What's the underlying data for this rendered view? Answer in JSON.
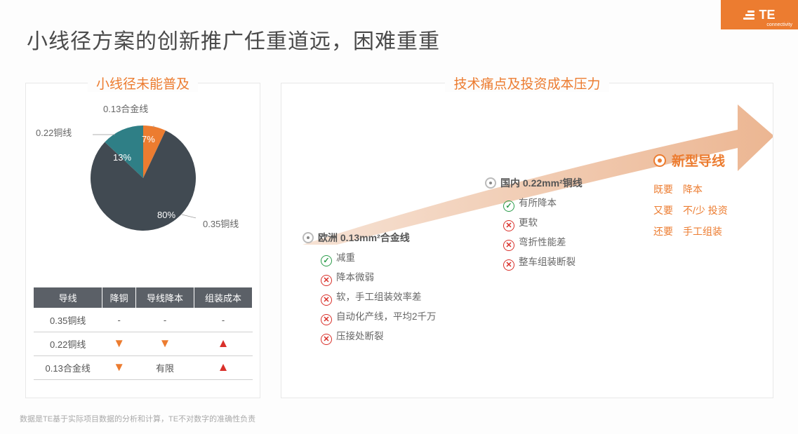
{
  "logo": {
    "text": "TE",
    "sub": "connectivity"
  },
  "title": "小线径方案的创新推广任重道远，困难重重",
  "left": {
    "panel_title": "小线径未能普及",
    "pie": {
      "type": "pie",
      "slices": [
        {
          "label": "0.35铜线",
          "value": 80,
          "color": "#414a52",
          "pct_text": "80%"
        },
        {
          "label": "0.22铜线",
          "value": 13,
          "color": "#2f7f86",
          "pct_text": "13%"
        },
        {
          "label": "0.13合金线",
          "value": 7,
          "color": "#ec7c30",
          "pct_text": "7%"
        }
      ],
      "radius": 75
    },
    "table": {
      "headers": [
        "导线",
        "降铜",
        "导线降本",
        "组装成本"
      ],
      "rows": [
        {
          "name": "0.35铜线",
          "c1": "dash",
          "c2": "dash",
          "c3": "dash"
        },
        {
          "name": "0.22铜线",
          "c1": "down",
          "c2": "down",
          "c3": "up"
        },
        {
          "name": "0.13合金线",
          "c1": "down",
          "c2": "limited",
          "c3": "up"
        }
      ],
      "limited_text": "有限"
    }
  },
  "right": {
    "panel_title": "技术痛点及投资成本压力",
    "curve_color": "#f2c6ab",
    "arrowhead_color": "#e9b699",
    "stage1": {
      "title": "欧洲 0.13mm²合金线",
      "items": [
        {
          "icon": "ok",
          "text": "减重"
        },
        {
          "icon": "no",
          "text": "降本微弱"
        },
        {
          "icon": "no",
          "text": "软，手工组装效率差"
        },
        {
          "icon": "no",
          "text": "自动化产线，平均2千万"
        },
        {
          "icon": "no",
          "text": "压接处断裂"
        }
      ]
    },
    "stage2": {
      "title": "国内 0.22mm²铜线",
      "items": [
        {
          "icon": "ok",
          "text": "有所降本"
        },
        {
          "icon": "no",
          "text": "更软"
        },
        {
          "icon": "no",
          "text": "弯折性能差"
        },
        {
          "icon": "no",
          "text": "整车组装断裂"
        }
      ]
    },
    "stage3": {
      "title": "新型导线",
      "lines": [
        {
          "k": "既要",
          "v": "降本"
        },
        {
          "k": "又要",
          "v": "不/少 投资"
        },
        {
          "k": "还要",
          "v": "手工组装"
        }
      ]
    }
  },
  "footnote": "数据是TE基于实际项目数据的分析和计算，TE不对数字的准确性负责",
  "colors": {
    "accent": "#ec7c30",
    "text_gray": "#555",
    "panel_border": "#e8e8e8"
  }
}
